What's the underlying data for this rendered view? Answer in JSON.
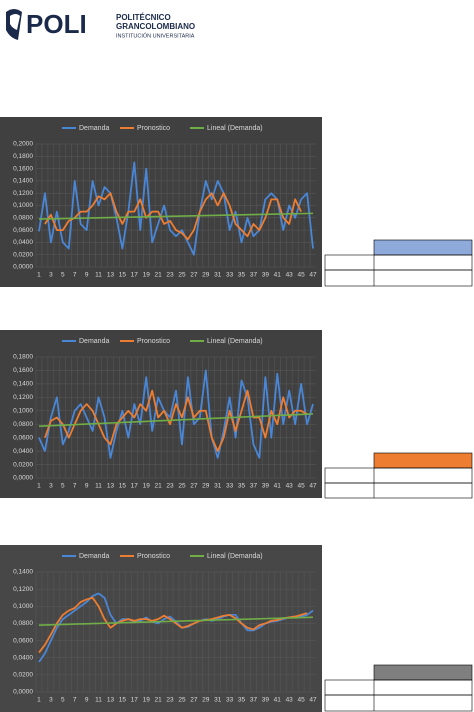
{
  "header": {
    "logo": "POLI",
    "name_1": "POLITÉCNICO",
    "name_2": "GRANCOLOMBIANO",
    "subtitle": "INSTITUCIÓN UNIVERSITARIA"
  },
  "chart_data": [
    {
      "type": "line",
      "categories": [
        1,
        null,
        3,
        null,
        5,
        null,
        7,
        null,
        9,
        null,
        11,
        null,
        13,
        null,
        15,
        null,
        17,
        null,
        19,
        null,
        21,
        null,
        23,
        null,
        25,
        null,
        27,
        null,
        29,
        null,
        31,
        null,
        33,
        null,
        35,
        null,
        37,
        null,
        39,
        null,
        41,
        null,
        43,
        null,
        45,
        null,
        47
      ],
      "series": [
        {
          "name": "Demanda",
          "color": "#4a86d6",
          "values": [
            0.058,
            0.12,
            0.04,
            0.09,
            0.04,
            0.03,
            0.14,
            0.07,
            0.06,
            0.14,
            0.1,
            0.13,
            0.12,
            0.08,
            0.03,
            0.09,
            0.17,
            0.06,
            0.16,
            0.04,
            0.07,
            0.1,
            0.06,
            0.05,
            0.06,
            0.04,
            0.02,
            0.09,
            0.14,
            0.11,
            0.14,
            0.12,
            0.06,
            0.09,
            0.04,
            0.08,
            0.05,
            0.06,
            0.11,
            0.12,
            0.11,
            0.06,
            0.1,
            0.08,
            0.11,
            0.12,
            0.03
          ]
        },
        {
          "name": "Pronostico",
          "color": "#ed7d31",
          "values": [
            null,
            0.07,
            0.085,
            0.06,
            0.06,
            0.075,
            0.08,
            0.09,
            0.09,
            0.1,
            0.115,
            0.11,
            0.12,
            0.09,
            0.07,
            0.09,
            0.09,
            0.11,
            0.08,
            0.09,
            0.09,
            0.07,
            0.075,
            0.06,
            0.055,
            0.045,
            0.06,
            0.09,
            0.11,
            0.12,
            0.1,
            0.12,
            0.1,
            0.07,
            0.06,
            0.05,
            0.07,
            0.06,
            0.08,
            0.11,
            0.11,
            0.08,
            0.07,
            0.11,
            0.09,
            null,
            null
          ]
        },
        {
          "name": "Lineal (Demanda)",
          "color": "#70ad47",
          "values": [
            0.078,
            0.0782,
            0.0784,
            0.0786,
            0.0788,
            0.079,
            0.0792,
            0.0794,
            0.0796,
            0.0798,
            0.08,
            0.0802,
            0.0804,
            0.0806,
            0.0808,
            0.081,
            0.0812,
            0.0814,
            0.0816,
            0.0818,
            0.082,
            0.0822,
            0.0824,
            0.0826,
            0.0828,
            0.083,
            0.0832,
            0.0834,
            0.0836,
            0.0838,
            0.084,
            0.0842,
            0.0844,
            0.0846,
            0.0848,
            0.085,
            0.0852,
            0.0854,
            0.0856,
            0.0858,
            0.086,
            0.0862,
            0.0864,
            0.0866,
            0.0868,
            0.087,
            0.0872
          ]
        }
      ],
      "ylim": [
        0,
        0.2
      ],
      "yticks": [
        {
          "value": 0,
          "label": "0,0000"
        },
        {
          "value": 0.02,
          "label": "0,0200"
        },
        {
          "value": 0.04,
          "label": "0,0400"
        },
        {
          "value": 0.06,
          "label": "0,0600"
        },
        {
          "value": 0.08,
          "label": "0,0800"
        },
        {
          "value": 0.1,
          "label": "0,1000"
        },
        {
          "value": 0.12,
          "label": "0,1200"
        },
        {
          "value": 0.14,
          "label": "0,1400"
        },
        {
          "value": 0.16,
          "label": "0,1600"
        },
        {
          "value": 0.18,
          "label": "0,1800"
        },
        {
          "value": 0.2,
          "label": "0,2000"
        }
      ],
      "grid": true
    },
    {
      "type": "line",
      "categories": [
        1,
        null,
        3,
        null,
        5,
        null,
        7,
        null,
        9,
        null,
        11,
        null,
        13,
        null,
        15,
        null,
        17,
        null,
        19,
        null,
        21,
        null,
        23,
        null,
        25,
        null,
        27,
        null,
        29,
        null,
        31,
        null,
        33,
        null,
        35,
        null,
        37,
        null,
        39,
        null,
        41,
        null,
        43,
        null,
        45,
        null,
        47
      ],
      "series": [
        {
          "name": "Demanda",
          "color": "#4a86d6",
          "values": [
            0.06,
            0.04,
            0.09,
            0.12,
            0.05,
            0.07,
            0.1,
            0.11,
            0.09,
            0.07,
            0.12,
            0.09,
            0.03,
            0.07,
            0.1,
            0.06,
            0.11,
            0.08,
            0.15,
            0.07,
            0.12,
            0.1,
            0.09,
            0.13,
            0.05,
            0.15,
            0.08,
            0.09,
            0.16,
            0.06,
            0.03,
            0.07,
            0.12,
            0.06,
            0.145,
            0.12,
            0.05,
            0.03,
            0.15,
            0.06,
            0.155,
            0.08,
            0.13,
            0.08,
            0.14,
            0.08,
            0.11
          ]
        },
        {
          "name": "Pronostico",
          "color": "#ed7d31",
          "values": [
            null,
            0.06,
            0.085,
            0.09,
            0.08,
            0.06,
            0.08,
            0.1,
            0.11,
            0.1,
            0.08,
            0.06,
            0.05,
            0.08,
            0.09,
            0.1,
            0.09,
            0.11,
            0.1,
            0.13,
            0.09,
            0.1,
            0.08,
            0.11,
            0.09,
            0.12,
            0.09,
            0.1,
            0.1,
            0.06,
            0.04,
            0.06,
            0.1,
            0.07,
            0.1,
            0.13,
            0.09,
            0.09,
            0.06,
            0.1,
            0.08,
            0.12,
            0.09,
            0.1,
            0.1,
            0.095,
            null
          ]
        },
        {
          "name": "Lineal (Demanda)",
          "color": "#70ad47",
          "values": [
            0.077,
            0.0774,
            0.0778,
            0.0782,
            0.0786,
            0.079,
            0.0794,
            0.0798,
            0.0802,
            0.0806,
            0.081,
            0.0814,
            0.0818,
            0.0822,
            0.0826,
            0.083,
            0.0834,
            0.0838,
            0.0842,
            0.0846,
            0.085,
            0.0854,
            0.0858,
            0.0862,
            0.0866,
            0.087,
            0.0874,
            0.0878,
            0.0882,
            0.0886,
            0.089,
            0.0894,
            0.0898,
            0.0902,
            0.0906,
            0.091,
            0.0914,
            0.0918,
            0.0922,
            0.0926,
            0.093,
            0.0934,
            0.0938,
            0.0942,
            0.0946,
            0.095,
            0.0954
          ]
        }
      ],
      "ylim": [
        0,
        0.18
      ],
      "yticks": [
        {
          "value": 0,
          "label": "0,0000"
        },
        {
          "value": 0.02,
          "label": "0,0200"
        },
        {
          "value": 0.04,
          "label": "0,0400"
        },
        {
          "value": 0.06,
          "label": "0,0600"
        },
        {
          "value": 0.08,
          "label": "0,0800"
        },
        {
          "value": 0.1,
          "label": "0,1000"
        },
        {
          "value": 0.12,
          "label": "0,1200"
        },
        {
          "value": 0.14,
          "label": "0,1400"
        },
        {
          "value": 0.16,
          "label": "0,1600"
        },
        {
          "value": 0.18,
          "label": "0,1800"
        }
      ],
      "grid": true
    },
    {
      "type": "line",
      "categories": [
        1,
        null,
        3,
        null,
        5,
        null,
        7,
        null,
        9,
        null,
        11,
        null,
        13,
        null,
        15,
        null,
        17,
        null,
        19,
        null,
        21,
        null,
        23,
        null,
        25,
        null,
        27,
        null,
        29,
        null,
        31,
        null,
        33,
        null,
        35,
        null,
        37,
        null,
        39,
        null,
        41,
        null,
        43,
        null,
        45,
        null,
        47
      ],
      "series": [
        {
          "name": "Demanda",
          "color": "#4a86d6",
          "values": [
            0.035,
            0.045,
            0.06,
            0.075,
            0.085,
            0.09,
            0.095,
            0.1,
            0.105,
            0.112,
            0.115,
            0.11,
            0.09,
            0.08,
            0.085,
            0.085,
            0.082,
            0.083,
            0.087,
            0.082,
            0.08,
            0.085,
            0.088,
            0.082,
            0.075,
            0.076,
            0.08,
            0.083,
            0.085,
            0.083,
            0.085,
            0.088,
            0.09,
            0.09,
            0.08,
            0.072,
            0.072,
            0.075,
            0.08,
            0.082,
            0.083,
            0.085,
            0.087,
            0.088,
            0.088,
            0.09,
            0.095
          ]
        },
        {
          "name": "Pronostico",
          "color": "#ed7d31",
          "values": [
            0.046,
            0.055,
            0.067,
            0.08,
            0.09,
            0.095,
            0.098,
            0.105,
            0.108,
            0.11,
            0.1,
            0.085,
            0.075,
            0.08,
            0.083,
            0.085,
            0.083,
            0.085,
            0.085,
            0.083,
            0.085,
            0.089,
            0.085,
            0.08,
            0.075,
            0.077,
            0.08,
            0.083,
            0.084,
            0.085,
            0.087,
            0.089,
            0.09,
            0.086,
            0.08,
            0.075,
            0.073,
            0.078,
            0.08,
            0.083,
            0.084,
            0.086,
            0.087,
            0.088,
            0.09,
            0.092,
            null
          ]
        },
        {
          "name": "Lineal (Demanda)",
          "color": "#70ad47",
          "values": [
            0.078,
            0.0782,
            0.0784,
            0.0786,
            0.0788,
            0.079,
            0.0792,
            0.0794,
            0.0796,
            0.0798,
            0.08,
            0.0802,
            0.0804,
            0.0806,
            0.0808,
            0.081,
            0.0812,
            0.0814,
            0.0816,
            0.0818,
            0.082,
            0.0822,
            0.0824,
            0.0826,
            0.0828,
            0.083,
            0.0832,
            0.0834,
            0.0836,
            0.0838,
            0.084,
            0.0842,
            0.0844,
            0.0846,
            0.0848,
            0.085,
            0.0852,
            0.0854,
            0.0856,
            0.0858,
            0.086,
            0.0862,
            0.0864,
            0.0866,
            0.0868,
            0.087,
            0.0872
          ]
        }
      ],
      "ylim": [
        0,
        0.14
      ],
      "yticks": [
        {
          "value": 0,
          "label": "0,0000"
        },
        {
          "value": 0.02,
          "label": "0,0200"
        },
        {
          "value": 0.04,
          "label": "0,0400"
        },
        {
          "value": 0.06,
          "label": "0,0600"
        },
        {
          "value": 0.08,
          "label": "0,0800"
        },
        {
          "value": 0.1,
          "label": "0,1000"
        },
        {
          "value": 0.12,
          "label": "0,1200"
        },
        {
          "value": 0.14,
          "label": "0,1400"
        }
      ],
      "grid": true
    }
  ]
}
